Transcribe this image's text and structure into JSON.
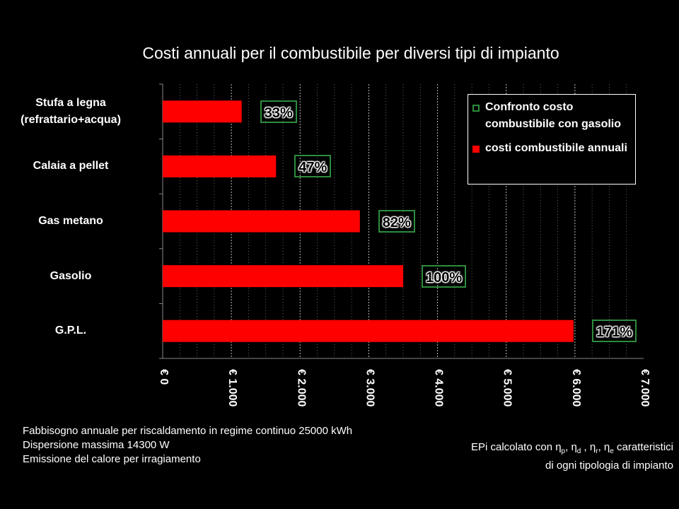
{
  "chart_data": {
    "type": "bar",
    "orientation": "horizontal",
    "title": "Costi annuali per il combustibile per diversi tipi di impianto",
    "categories": [
      "Stufa a legna\n(refrattario+acqua)",
      "Calaia a pellet",
      "Gas metano",
      "Gasolio",
      "G.P.L."
    ],
    "series": [
      {
        "name": "costi combustibile annuali",
        "color": "#ff0000",
        "values": [
          1150,
          1650,
          2870,
          3500,
          5980
        ]
      }
    ],
    "comparison": {
      "name": "Confronto costo combustibile con gasolio",
      "labels": [
        "33%",
        "47%",
        "82%",
        "100%",
        "171%"
      ]
    },
    "xlim": [
      0,
      7000
    ],
    "xticks": [
      "€ 0",
      "€ 1.000",
      "€ 2.000",
      "€ 3.000",
      "€ 4.000",
      "€ 5.000",
      "€ 6.000",
      "€ 7.000"
    ],
    "grid": true,
    "legend": "top-right"
  },
  "legend": {
    "items": [
      {
        "label": "Confronto costo combustibile con gasolio",
        "swatch": "outline-green"
      },
      {
        "label": "costi combustibile annuali",
        "swatch": "red"
      }
    ]
  },
  "notes": {
    "left": [
      "Fabbisogno  annuale per  riscaldamento in regime continuo  25000 kWh",
      "Dispersione massima 14300 W",
      "Emissione  del calore per irragiamento"
    ],
    "right_prefix": "EPi calcolato con η",
    "right_subs": [
      "p",
      "d",
      "r",
      "e"
    ],
    "right_suffix": " caratteristici",
    "right_line2": "di ogni tipologia di impianto"
  },
  "colors": {
    "bar": "#ff0000",
    "label_border": "#2e8b3e",
    "background": "#000000"
  }
}
